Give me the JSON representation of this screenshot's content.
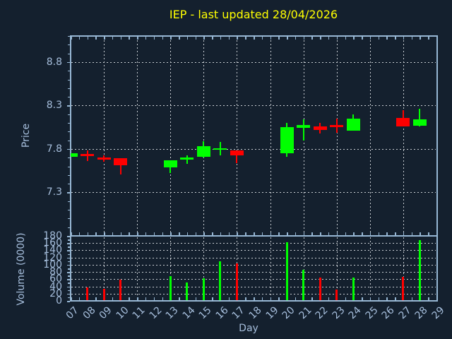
{
  "title": "IEP - last updated 28/04/2026",
  "axes": {
    "price_label": "Price",
    "volume_label": "Volume (0000)",
    "x_label": "Day"
  },
  "colors": {
    "background": "#14202e",
    "spine": "#97b7d4",
    "grid": "#c8cdd2",
    "tick_label": "#a6bedc",
    "title": "#ffff00",
    "up": "#00ff00",
    "down": "#ff0000"
  },
  "chart_data": {
    "type": "candlestick",
    "title": "IEP - last updated 28/04/2026",
    "xlabel": "Day",
    "legend": "none",
    "grid": "dotted, major gridlines only, axisbelow",
    "x_tick_labels": [
      "07",
      "08",
      "09",
      "10",
      "11",
      "12",
      "13",
      "14",
      "15",
      "16",
      "17",
      "18",
      "19",
      "20",
      "21",
      "22",
      "23",
      "24",
      "25",
      "26",
      "27",
      "28",
      "29"
    ],
    "x_day_range": [
      7,
      29
    ],
    "grid_x_days": [
      9,
      11,
      13,
      15,
      17,
      19,
      21,
      23,
      25,
      27
    ],
    "price_panel": {
      "ylabel": "Price",
      "ylim": [
        6.8,
        9.1
      ],
      "yticks": [
        7.3,
        7.8,
        8.3,
        8.8
      ],
      "ytick_labels": [
        "7.3",
        "7.8",
        "8.3",
        "8.8"
      ]
    },
    "volume_panel": {
      "ylabel": "Volume (0000)",
      "ylim": [
        0,
        180
      ],
      "yticks": [
        0,
        20,
        40,
        60,
        80,
        100,
        120,
        140,
        160,
        180
      ],
      "ytick_labels": [
        "0",
        "20",
        "40",
        "60",
        "80",
        "100",
        "120",
        "140",
        "160",
        "180"
      ]
    },
    "candles": [
      {
        "day": 7,
        "open": 7.71,
        "high": 7.75,
        "low": 7.71,
        "close": 7.75,
        "volume": null
      },
      {
        "day": 8,
        "open": 7.74,
        "high": 7.78,
        "low": 7.66,
        "close": 7.72,
        "volume": 37
      },
      {
        "day": 9,
        "open": 7.7,
        "high": 7.73,
        "low": 7.65,
        "close": 7.68,
        "volume": 34
      },
      {
        "day": 10,
        "open": 7.69,
        "high": 7.69,
        "low": 7.51,
        "close": 7.61,
        "volume": 59
      },
      {
        "day": 13,
        "open": 7.59,
        "high": 7.67,
        "low": 7.52,
        "close": 7.67,
        "volume": 68
      },
      {
        "day": 14,
        "open": 7.68,
        "high": 7.73,
        "low": 7.63,
        "close": 7.7,
        "volume": 50
      },
      {
        "day": 15,
        "open": 7.71,
        "high": 7.89,
        "low": 7.7,
        "close": 7.83,
        "volume": 63
      },
      {
        "day": 16,
        "open": 7.79,
        "high": 7.88,
        "low": 7.73,
        "close": 7.81,
        "volume": 110
      },
      {
        "day": 17,
        "open": 7.78,
        "high": 7.78,
        "low": 7.64,
        "close": 7.73,
        "volume": 103
      },
      {
        "day": 20,
        "open": 7.75,
        "high": 8.1,
        "low": 7.71,
        "close": 8.05,
        "volume": 162
      },
      {
        "day": 21,
        "open": 8.04,
        "high": 8.14,
        "low": 7.9,
        "close": 8.08,
        "volume": 86
      },
      {
        "day": 22,
        "open": 8.06,
        "high": 8.1,
        "low": 7.98,
        "close": 8.02,
        "volume": 65
      },
      {
        "day": 23,
        "open": 8.08,
        "high": 8.15,
        "low": 7.99,
        "close": 8.05,
        "volume": 32
      },
      {
        "day": 24,
        "open": 8.01,
        "high": 8.2,
        "low": 8.01,
        "close": 8.15,
        "volume": 65
      },
      {
        "day": 27,
        "open": 8.16,
        "high": 8.25,
        "low": 8.06,
        "close": 8.06,
        "volume": 67
      },
      {
        "day": 28,
        "open": 8.07,
        "high": 8.26,
        "low": 8.06,
        "close": 8.14,
        "volume": 169
      }
    ]
  }
}
